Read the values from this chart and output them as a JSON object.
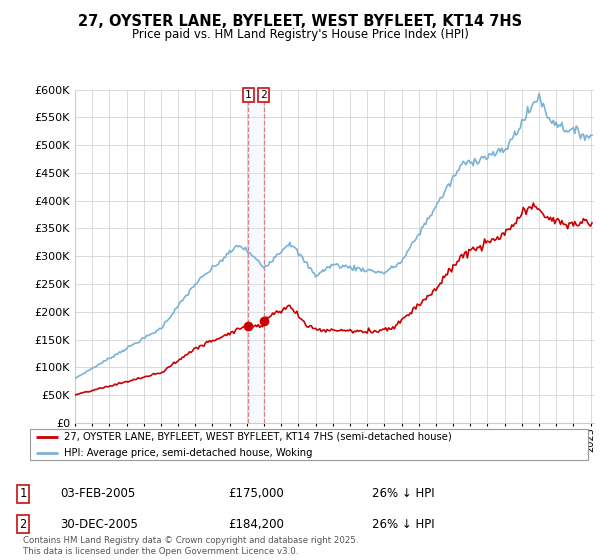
{
  "title": "27, OYSTER LANE, BYFLEET, WEST BYFLEET, KT14 7HS",
  "subtitle": "Price paid vs. HM Land Registry's House Price Index (HPI)",
  "legend_line1": "27, OYSTER LANE, BYFLEET, WEST BYFLEET, KT14 7HS (semi-detached house)",
  "legend_line2": "HPI: Average price, semi-detached house, Woking",
  "footer": "Contains HM Land Registry data © Crown copyright and database right 2025.\nThis data is licensed under the Open Government Licence v3.0.",
  "annotation1_label": "1",
  "annotation1_date": "03-FEB-2005",
  "annotation1_price": "£175,000",
  "annotation1_hpi": "26% ↓ HPI",
  "annotation2_label": "2",
  "annotation2_date": "30-DEC-2005",
  "annotation2_price": "£184,200",
  "annotation2_hpi": "26% ↓ HPI",
  "hpi_color": "#7ab3d6",
  "price_color": "#cc0000",
  "vline_color": "#e08080",
  "shade_color": "#ddeeff",
  "ylim_min": 0,
  "ylim_max": 600000,
  "transaction1_year": 2005.08,
  "transaction2_year": 2005.99,
  "transaction1_price": 175000,
  "transaction2_price": 184200
}
